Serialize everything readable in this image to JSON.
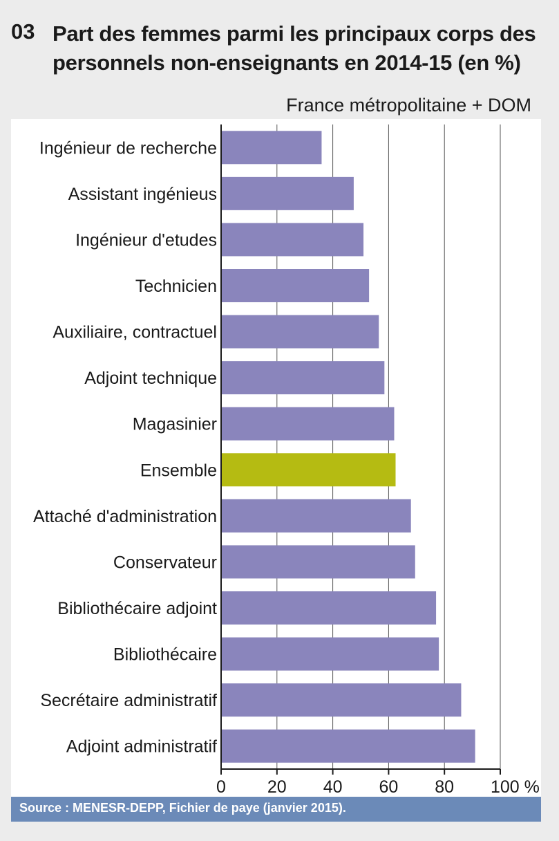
{
  "figure_number": "03",
  "chart_data": {
    "type": "bar",
    "orientation": "horizontal",
    "title": "Part des femmes parmi les principaux corps des personnels non-enseignants en 2014-15 (en %)",
    "subtitle": "France métropolitaine + DOM",
    "categories": [
      "Ingénieur de recherche",
      "Assistant ingénieus",
      "Ingénieur d'etudes",
      "Technicien",
      "Auxiliaire, contractuel",
      "Adjoint technique",
      "Magasinier",
      "Ensemble",
      "Attaché d'administration",
      "Conservateur",
      "Bibliothécaire adjoint",
      "Bibliothécaire",
      "Secrétaire administratif",
      "Adjoint administratif"
    ],
    "values": [
      36,
      47.5,
      51,
      53,
      56.5,
      58.5,
      62,
      62.5,
      68,
      69.5,
      77,
      78,
      86,
      91
    ],
    "highlight_category": "Ensemble",
    "xlim": [
      0,
      100
    ],
    "x_ticks": [
      0,
      20,
      40,
      60,
      80,
      100
    ],
    "x_tick_labels": [
      "0",
      "20",
      "40",
      "60",
      "80",
      "100 %"
    ],
    "grid": "vertical",
    "colors": {
      "bar": "#8a85bc",
      "highlight": "#b5bb12",
      "grid": "#555555",
      "axis": "#1a1a1a"
    }
  },
  "source": "Source : MENESR-DEPP, Fichier de paye (janvier 2015)."
}
